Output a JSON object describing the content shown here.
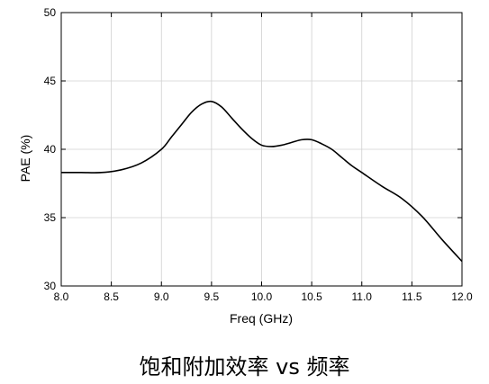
{
  "chart_data": {
    "type": "line",
    "xlabel": "Freq (GHz)",
    "ylabel": "PAE (%)",
    "xlim": [
      8.0,
      12.0
    ],
    "ylim": [
      30,
      50
    ],
    "xticks": [
      "8.0",
      "8.5",
      "9.0",
      "9.5",
      "10.0",
      "10.5",
      "11.0",
      "11.5",
      "12.0"
    ],
    "yticks": [
      "30",
      "35",
      "40",
      "45",
      "50"
    ],
    "grid": true,
    "series": [
      {
        "color": "#000000",
        "x": [
          8.0,
          8.2,
          8.4,
          8.6,
          8.8,
          9.0,
          9.1,
          9.2,
          9.3,
          9.4,
          9.5,
          9.6,
          9.7,
          9.8,
          9.9,
          10.0,
          10.1,
          10.2,
          10.3,
          10.4,
          10.5,
          10.6,
          10.7,
          10.8,
          10.9,
          11.0,
          11.2,
          11.4,
          11.6,
          11.8,
          12.0
        ],
        "y": [
          38.3,
          38.3,
          38.3,
          38.5,
          39.0,
          40.0,
          40.9,
          41.8,
          42.7,
          43.3,
          43.5,
          43.1,
          42.3,
          41.5,
          40.8,
          40.3,
          40.2,
          40.3,
          40.5,
          40.7,
          40.7,
          40.4,
          40.0,
          39.4,
          38.8,
          38.3,
          37.3,
          36.4,
          35.1,
          33.4,
          31.8
        ]
      }
    ]
  },
  "caption": "饱和附加效率 vs 频率"
}
